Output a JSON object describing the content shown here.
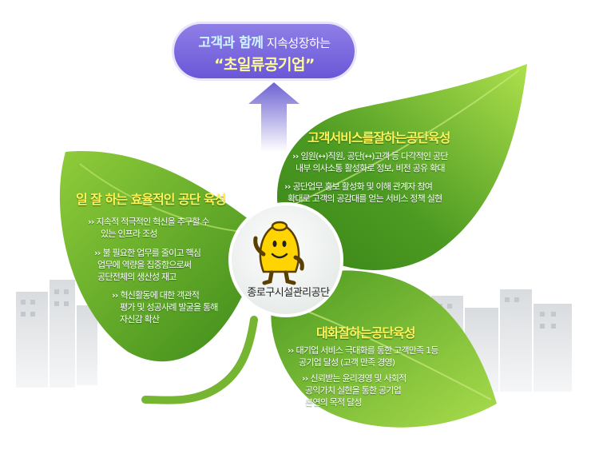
{
  "goal": {
    "line1_highlight": "고객과 함께",
    "line1_rest": "지속성장하는",
    "line2": "“초일류공기업”"
  },
  "leaves": {
    "left": {
      "title": "일 잘 하는 효율적인 공단 육성",
      "bullets": [
        [
          "지속적 적극적인 혁신을 추구할 수",
          "있는 인프라 조성"
        ],
        [
          "불 필요한 업무를 줄이고 핵심",
          "업무에 역량을 집중함으로써",
          "공단전체의 생산성 재고"
        ],
        [
          "혁신활동에 대한 객관적",
          "평가 및 성공사례 발굴을 통해",
          "자신감 확산"
        ]
      ]
    },
    "top_right": {
      "title": "고객서비스를잘하는공단육성",
      "bullets": [
        [
          "임원(↔)직원, 공단(↔)고객 등 다각적인 공단",
          "내부 의사소통 활성화로 정보, 비전 공유 확대"
        ],
        [
          "공단업무 홍보 활성화 및 이해 관계자 참여",
          "확대로 고객의 공감대를 얻는 서비스 정책 실현"
        ]
      ]
    },
    "bottom_right": {
      "title": "대화잘하는공단육성",
      "bullets": [
        [
          "대기업 서비스 극대화를 통한 고객만족 1등",
          "공기업 달성 (고객 만족 경영)"
        ],
        [
          "신뢰받는 윤리경영 및 사회적",
          "공익가치 실현을 통한 공기업",
          "본연의 목적 달성"
        ]
      ]
    }
  },
  "center": {
    "org_name": "종로구시설관리공단",
    "mascot": "mascot-icon"
  },
  "colors": {
    "leaf_dark": "#3f8f1c",
    "leaf_light": "#9bd23d",
    "title": "#fff35a",
    "goal_bubble": "#7a68de",
    "arrow": "#7a6fd8"
  }
}
